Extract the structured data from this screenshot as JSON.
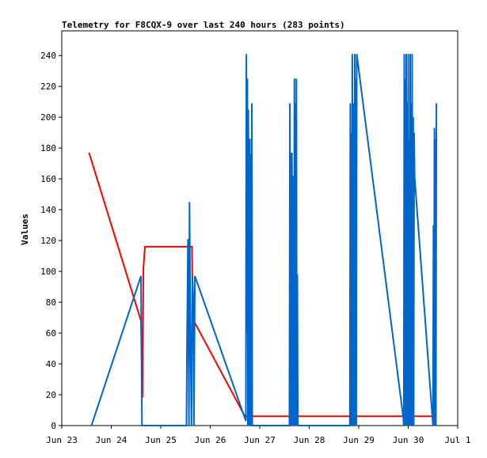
{
  "chart_data": {
    "type": "line",
    "title": "Telemetry for F8CQX-9 over last 240 hours (283 points)",
    "xlabel": "",
    "ylabel": "Values",
    "x_tick_labels": [
      "Jun 23",
      "Jun 24",
      "Jun 25",
      "Jun 26",
      "Jun 27",
      "Jun 28",
      "Jun 29",
      "Jun 30",
      "Jul 1"
    ],
    "xlim": [
      0,
      8
    ],
    "y_ticks": [
      0,
      20,
      40,
      60,
      80,
      100,
      120,
      140,
      160,
      180,
      200,
      220,
      240
    ],
    "ylim": [
      0,
      256
    ],
    "grid": false,
    "legend": "none",
    "series": [
      {
        "color": "#ff0000",
        "points": [
          [
            0.55,
            177
          ],
          [
            1.6,
            68
          ],
          [
            1.63,
            18
          ],
          [
            1.65,
            102
          ],
          [
            1.68,
            116
          ],
          [
            2.63,
            116
          ],
          [
            2.65,
            69
          ],
          [
            3.7,
            6
          ],
          [
            7.55,
            6
          ]
        ]
      },
      {
        "color": "#0066cc",
        "points": [
          [
            0.6,
            0
          ],
          [
            1.6,
            97
          ],
          [
            1.62,
            0
          ],
          [
            2.52,
            0
          ],
          [
            2.53,
            50
          ],
          [
            2.55,
            121
          ],
          [
            2.57,
            0
          ],
          [
            2.58,
            145
          ],
          [
            2.6,
            60
          ],
          [
            2.62,
            0
          ],
          [
            2.64,
            96
          ],
          [
            2.66,
            80
          ],
          [
            2.67,
            0
          ],
          [
            2.69,
            97
          ],
          [
            3.72,
            3
          ],
          [
            3.73,
            241
          ],
          [
            3.74,
            60
          ],
          [
            3.75,
            225
          ],
          [
            3.76,
            0
          ],
          [
            3.77,
            205
          ],
          [
            3.78,
            100
          ],
          [
            3.79,
            0
          ],
          [
            3.8,
            186
          ],
          [
            3.81,
            0
          ],
          [
            3.82,
            176
          ],
          [
            3.83,
            0
          ],
          [
            3.84,
            209
          ],
          [
            3.85,
            0
          ],
          [
            4.6,
            0
          ],
          [
            4.61,
            209
          ],
          [
            4.62,
            0
          ],
          [
            4.63,
            177
          ],
          [
            4.64,
            0
          ],
          [
            4.65,
            177
          ],
          [
            4.66,
            120
          ],
          [
            4.67,
            0
          ],
          [
            4.68,
            162
          ],
          [
            4.69,
            0
          ],
          [
            4.7,
            225
          ],
          [
            4.71,
            0
          ],
          [
            4.72,
            209
          ],
          [
            4.73,
            0
          ],
          [
            4.74,
            225
          ],
          [
            4.75,
            0
          ],
          [
            4.76,
            98
          ],
          [
            4.77,
            0
          ],
          [
            5.82,
            0
          ],
          [
            5.83,
            209
          ],
          [
            5.84,
            0
          ],
          [
            5.85,
            190
          ],
          [
            5.86,
            0
          ],
          [
            5.87,
            241
          ],
          [
            5.88,
            130
          ],
          [
            5.89,
            0
          ],
          [
            5.9,
            209
          ],
          [
            5.91,
            0
          ],
          [
            5.92,
            241
          ],
          [
            5.93,
            0
          ],
          [
            5.94,
            225
          ],
          [
            5.95,
            0
          ],
          [
            5.96,
            241
          ],
          [
            6.9,
            5
          ],
          [
            6.91,
            0
          ],
          [
            6.92,
            241
          ],
          [
            6.93,
            0
          ],
          [
            6.94,
            225
          ],
          [
            6.95,
            0
          ],
          [
            6.96,
            241
          ],
          [
            6.97,
            0
          ],
          [
            6.98,
            210
          ],
          [
            6.99,
            0
          ],
          [
            7.0,
            241
          ],
          [
            7.01,
            0
          ],
          [
            7.02,
            186
          ],
          [
            7.03,
            0
          ],
          [
            7.04,
            241
          ],
          [
            7.05,
            0
          ],
          [
            7.06,
            209
          ],
          [
            7.07,
            0
          ],
          [
            7.08,
            241
          ],
          [
            7.09,
            0
          ],
          [
            7.1,
            200
          ],
          [
            7.11,
            0
          ],
          [
            7.12,
            190
          ],
          [
            7.13,
            161
          ],
          [
            7.5,
            0
          ],
          [
            7.51,
            130
          ],
          [
            7.52,
            0
          ],
          [
            7.53,
            193
          ],
          [
            7.54,
            0
          ],
          [
            7.55,
            186
          ],
          [
            7.56,
            0
          ],
          [
            7.57,
            209
          ]
        ]
      }
    ]
  }
}
